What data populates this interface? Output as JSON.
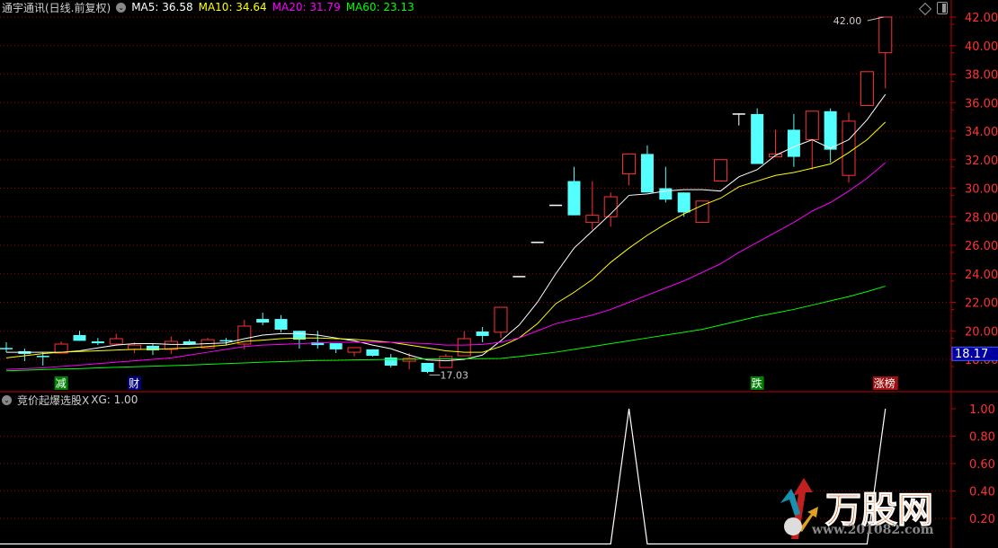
{
  "header": {
    "title": "通宇通讯(日线.前复权)",
    "ma_labels": [
      {
        "text": "MA5: 36.58",
        "color": "#ffffff"
      },
      {
        "text": "MA10: 34.64",
        "color": "#ffff00"
      },
      {
        "text": "MA20: 31.79",
        "color": "#ff00ff"
      },
      {
        "text": "MA60: 23.13",
        "color": "#00ff00"
      }
    ]
  },
  "indicator": {
    "title": "竞价起爆选股X",
    "value_label": "XG: 1.00"
  },
  "logo": {
    "main": "万股网",
    "url": "www.201082.com"
  },
  "colors": {
    "up": "#ff3232",
    "down": "#54ffff",
    "flat": "#ffffff",
    "grid": "#a00000",
    "axis_text": "#ff3232",
    "ma5": "#ffffff",
    "ma10": "#ffff00",
    "ma20": "#ff00ff",
    "ma60": "#00ff00",
    "price_tag_bg": "#0000a0"
  },
  "chart_data": [
    {
      "type": "candlestick",
      "ylim": [
        17,
        43
      ],
      "yticks": [
        "42.00",
        "40.00",
        "38.00",
        "36.00",
        "34.00",
        "32.00",
        "30.00",
        "28.00",
        "26.00",
        "24.00",
        "22.00",
        "20.00",
        "18.00"
      ],
      "ytick_values": [
        42,
        40,
        38,
        36,
        34,
        32,
        30,
        28,
        26,
        24,
        22,
        20,
        18
      ],
      "grid": true,
      "current_price_tag": "18.17",
      "current_price_value": 18.17,
      "high_annotation": {
        "text": "42.00",
        "candle": 49
      },
      "low_annotation": {
        "text": "17.03",
        "candle": 24
      },
      "ohlc": [
        [
          18.75,
          19.2,
          18.5,
          18.75
        ],
        [
          18.57,
          18.76,
          17.87,
          18.38
        ],
        [
          18.2,
          18.5,
          17.56,
          18.2
        ],
        [
          18.44,
          19.26,
          18.44,
          19.07
        ],
        [
          19.7,
          20.0,
          19.3,
          19.3
        ],
        [
          19.26,
          19.5,
          19.0,
          19.13
        ],
        [
          19.07,
          19.8,
          19.07,
          19.45
        ],
        [
          18.7,
          19.2,
          18.44,
          19.0
        ],
        [
          18.95,
          19.07,
          18.3,
          18.63
        ],
        [
          18.7,
          19.6,
          18.38,
          19.26
        ],
        [
          19.26,
          19.4,
          19.0,
          19.07
        ],
        [
          18.8,
          19.5,
          18.8,
          19.38
        ],
        [
          19.3,
          19.5,
          19.0,
          19.3
        ],
        [
          19.07,
          20.77,
          18.7,
          20.33
        ],
        [
          20.83,
          21.27,
          20.4,
          20.58
        ],
        [
          20.83,
          21.1,
          19.9,
          20.08
        ],
        [
          20.0,
          20.0,
          18.76,
          19.38
        ],
        [
          19.2,
          20.0,
          18.76,
          19.0
        ],
        [
          19.13,
          19.13,
          18.44,
          18.7
        ],
        [
          18.5,
          18.82,
          18.2,
          18.82
        ],
        [
          18.7,
          18.7,
          18.2,
          18.25
        ],
        [
          18.13,
          18.38,
          17.43,
          17.56
        ],
        [
          17.87,
          18.44,
          17.3,
          18.07
        ],
        [
          17.75,
          17.75,
          17.03,
          17.12
        ],
        [
          17.43,
          18.38,
          17.43,
          18.2
        ],
        [
          18.25,
          19.95,
          18.25,
          19.45
        ],
        [
          19.95,
          20.27,
          19.2,
          19.64
        ],
        [
          19.9,
          21.65,
          19.5,
          21.65
        ],
        [
          23.8,
          23.8,
          23.8,
          23.8
        ],
        [
          26.2,
          26.2,
          26.2,
          26.2
        ],
        [
          28.8,
          28.8,
          28.8,
          28.8
        ],
        [
          30.5,
          31.5,
          28.1,
          28.1
        ],
        [
          27.6,
          30.5,
          27.1,
          28.1
        ],
        [
          28.0,
          29.7,
          27.3,
          29.4
        ],
        [
          31.0,
          32.4,
          30.2,
          32.4
        ],
        [
          32.4,
          33.0,
          29.7,
          29.7
        ],
        [
          30.0,
          31.5,
          29.0,
          29.2
        ],
        [
          29.7,
          29.7,
          28.0,
          28.3
        ],
        [
          27.6,
          29.1,
          27.6,
          29.1
        ],
        [
          30.5,
          32.0,
          30.5,
          32.0
        ],
        [
          35.2,
          35.2,
          34.4,
          35.2
        ],
        [
          35.2,
          35.6,
          31.7,
          31.7
        ],
        [
          32.2,
          34.1,
          32.2,
          32.4
        ],
        [
          34.1,
          35.2,
          31.5,
          32.2
        ],
        [
          33.4,
          35.4,
          31.3,
          35.4
        ],
        [
          35.4,
          35.6,
          31.8,
          32.7
        ],
        [
          30.9,
          35.3,
          30.4,
          34.7
        ],
        [
          35.8,
          38.17,
          35.8,
          38.17
        ],
        [
          39.5,
          42.0,
          37.0,
          42.0
        ]
      ],
      "series": [
        {
          "name": "MA5",
          "values": [
            18.5,
            18.5,
            18.5,
            18.5,
            18.6,
            18.8,
            19.0,
            19.1,
            19.1,
            19.05,
            19.05,
            19.1,
            19.15,
            19.45,
            19.7,
            19.8,
            19.8,
            19.7,
            19.5,
            19.3,
            19.0,
            18.75,
            18.3,
            17.95,
            17.9,
            18.0,
            18.3,
            19.3,
            20.4,
            22.0,
            24.0,
            25.8,
            27.0,
            28.2,
            29.5,
            29.6,
            29.8,
            29.9,
            29.9,
            29.8,
            30.8,
            31.3,
            32.3,
            32.9,
            33.4,
            32.8,
            33.4,
            34.8,
            36.58
          ]
        },
        {
          "name": "MA10",
          "values": [
            18.1,
            18.25,
            18.4,
            18.5,
            18.55,
            18.6,
            18.65,
            18.7,
            18.7,
            18.75,
            18.8,
            18.9,
            19.0,
            19.26,
            19.35,
            19.45,
            19.5,
            19.5,
            19.45,
            19.4,
            19.3,
            19.2,
            19.0,
            18.8,
            18.6,
            18.5,
            18.5,
            18.9,
            19.5,
            20.5,
            21.9,
            22.7,
            23.6,
            24.8,
            25.8,
            26.7,
            27.5,
            28.2,
            28.8,
            29.3,
            30.1,
            30.5,
            30.9,
            31.1,
            31.4,
            31.7,
            32.5,
            33.4,
            34.64
          ]
        },
        {
          "name": "MA20",
          "values": [
            17.3,
            17.35,
            17.4,
            17.5,
            17.6,
            17.7,
            17.8,
            17.9,
            18.0,
            18.1,
            18.3,
            18.5,
            18.7,
            18.9,
            19.0,
            19.05,
            19.1,
            19.15,
            19.2,
            19.2,
            19.2,
            19.2,
            19.15,
            19.1,
            19.0,
            19.0,
            19.05,
            19.2,
            19.5,
            20.0,
            20.5,
            20.8,
            21.1,
            21.5,
            22.0,
            22.5,
            23.0,
            23.5,
            24.1,
            24.7,
            25.5,
            26.2,
            26.9,
            27.6,
            28.4,
            29.0,
            29.8,
            30.7,
            31.79
          ]
        },
        {
          "name": "MA60",
          "values": [
            17.2,
            17.24,
            17.28,
            17.32,
            17.35,
            17.4,
            17.44,
            17.48,
            17.52,
            17.56,
            17.6,
            17.65,
            17.7,
            17.75,
            17.8,
            17.84,
            17.88,
            17.92,
            17.93,
            17.96,
            17.98,
            18.0,
            18.01,
            18.02,
            18.03,
            18.04,
            18.05,
            18.06,
            18.2,
            18.35,
            18.5,
            18.7,
            18.9,
            19.1,
            19.3,
            19.5,
            19.7,
            19.9,
            20.1,
            20.4,
            20.7,
            21.0,
            21.25,
            21.5,
            21.8,
            22.1,
            22.4,
            22.75,
            23.13
          ]
        }
      ],
      "signals": [
        {
          "text": "减",
          "candle": 4,
          "bg": "#008000"
        },
        {
          "text": "财",
          "candle": 8,
          "bg": "#000080"
        },
        {
          "text": "跌",
          "candle": 42,
          "bg": "#008000"
        },
        {
          "text": "涨榜",
          "candle": 49,
          "bg": "#a01010"
        }
      ]
    },
    {
      "type": "line",
      "name": "XG",
      "ylim": [
        0,
        1.05
      ],
      "yticks": [
        "1.00",
        "0.80",
        "0.60",
        "0.40",
        "0.20"
      ],
      "ytick_values": [
        1.0,
        0.8,
        0.6,
        0.4,
        0.2
      ],
      "values": [
        0,
        0,
        0,
        0,
        0,
        0,
        0,
        0,
        0,
        0,
        0,
        0,
        0,
        0,
        0,
        0,
        0,
        0,
        0,
        0,
        0,
        0,
        0,
        0,
        0,
        0,
        0,
        0,
        0,
        0,
        0,
        0,
        0,
        0,
        1,
        0,
        0,
        0,
        0,
        0,
        0,
        0,
        0,
        0,
        0,
        0,
        0,
        0,
        1
      ]
    }
  ]
}
